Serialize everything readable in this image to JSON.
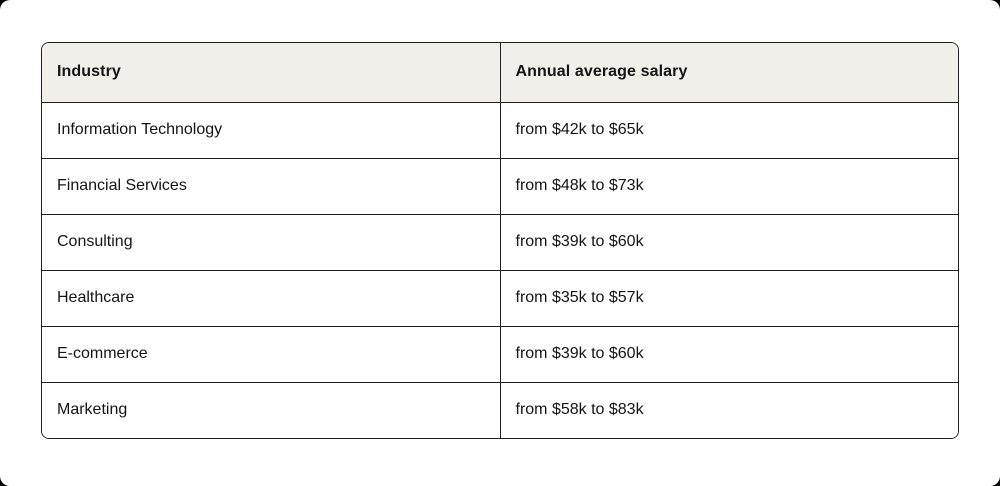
{
  "colors": {
    "outer_background": "#000000",
    "surface": "#ffffff",
    "header_background": "#f0efe9",
    "border": "#1f1f1f",
    "text": "#141414"
  },
  "chart_data": {
    "type": "table",
    "title": "",
    "columns": [
      "Industry",
      "Annual average salary"
    ],
    "rows": [
      {
        "industry": "Information Technology",
        "salary": "from $42k to $65k"
      },
      {
        "industry": "Financial Services",
        "salary": "from $48k to $73k"
      },
      {
        "industry": "Consulting",
        "salary": "from $39k to $60k"
      },
      {
        "industry": "Healthcare",
        "salary": "from $35k to $57k"
      },
      {
        "industry": "E-commerce",
        "salary": "from $39k to $60k"
      },
      {
        "industry": "Marketing",
        "salary": "from $58k to $83k"
      }
    ]
  }
}
